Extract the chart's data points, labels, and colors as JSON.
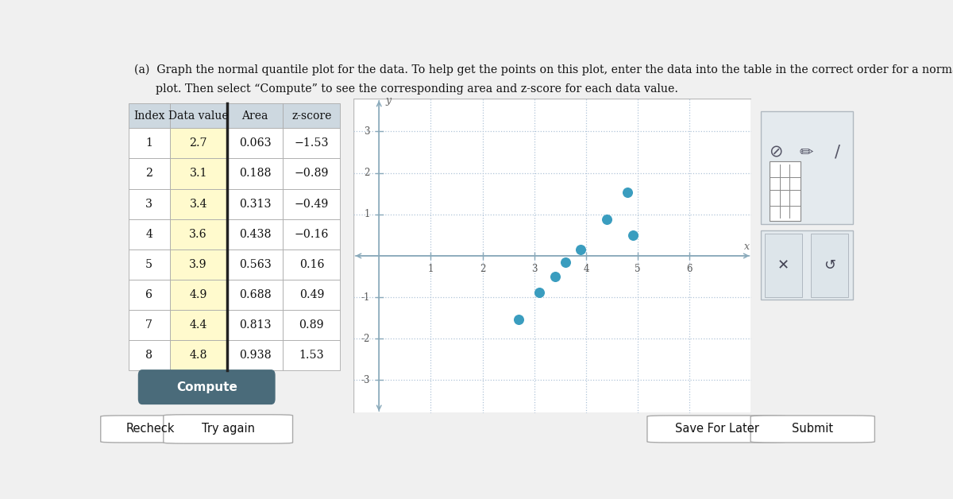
{
  "title_line1": "(a)  Graph the normal quantile plot for the data. To help get the points on this plot, enter the data into the table in the correct order for a normal quantile",
  "title_line2": "      plot. Then select “Compute” to see the corresponding area and z-score for each data value.",
  "table_data": {
    "indices": [
      1,
      2,
      3,
      4,
      5,
      6,
      7,
      8
    ],
    "data_values": [
      2.7,
      3.1,
      3.4,
      3.6,
      3.9,
      4.9,
      4.4,
      4.8
    ],
    "areas": [
      0.063,
      0.188,
      0.313,
      0.438,
      0.563,
      0.688,
      0.813,
      0.938
    ],
    "zscores": [
      -1.53,
      -0.89,
      -0.49,
      -0.16,
      0.16,
      0.49,
      0.89,
      1.53
    ]
  },
  "plot_points": {
    "x": [
      2.7,
      3.1,
      3.4,
      3.6,
      3.9,
      4.9,
      4.4,
      4.8
    ],
    "y": [
      -1.53,
      -0.89,
      -0.49,
      -0.16,
      0.16,
      0.49,
      0.89,
      1.53
    ]
  },
  "plot_xlim": [
    -0.5,
    7.2
  ],
  "plot_ylim": [
    -3.8,
    3.8
  ],
  "plot_xticks": [
    1,
    2,
    3,
    4,
    5,
    6
  ],
  "plot_yticks": [
    -3,
    -2,
    -1,
    1,
    2,
    3
  ],
  "dot_color": "#3a9dbf",
  "dot_size": 70,
  "highlight_color": "#fffacd",
  "table_header_bg": "#cdd8e0",
  "table_bg": "#ffffff",
  "grid_color": "#b0c4d8",
  "axis_color": "#8aaabb",
  "compute_button_color": "#4a6b7a",
  "compute_button_text": "Compute",
  "bg_color": "#f0f0f0",
  "panel_bg": "#ffffff",
  "toolbar_bg": "#e4eaee",
  "toolbar_border": "#b0b8c0",
  "bottom_bar_bg": "#dde3e8"
}
